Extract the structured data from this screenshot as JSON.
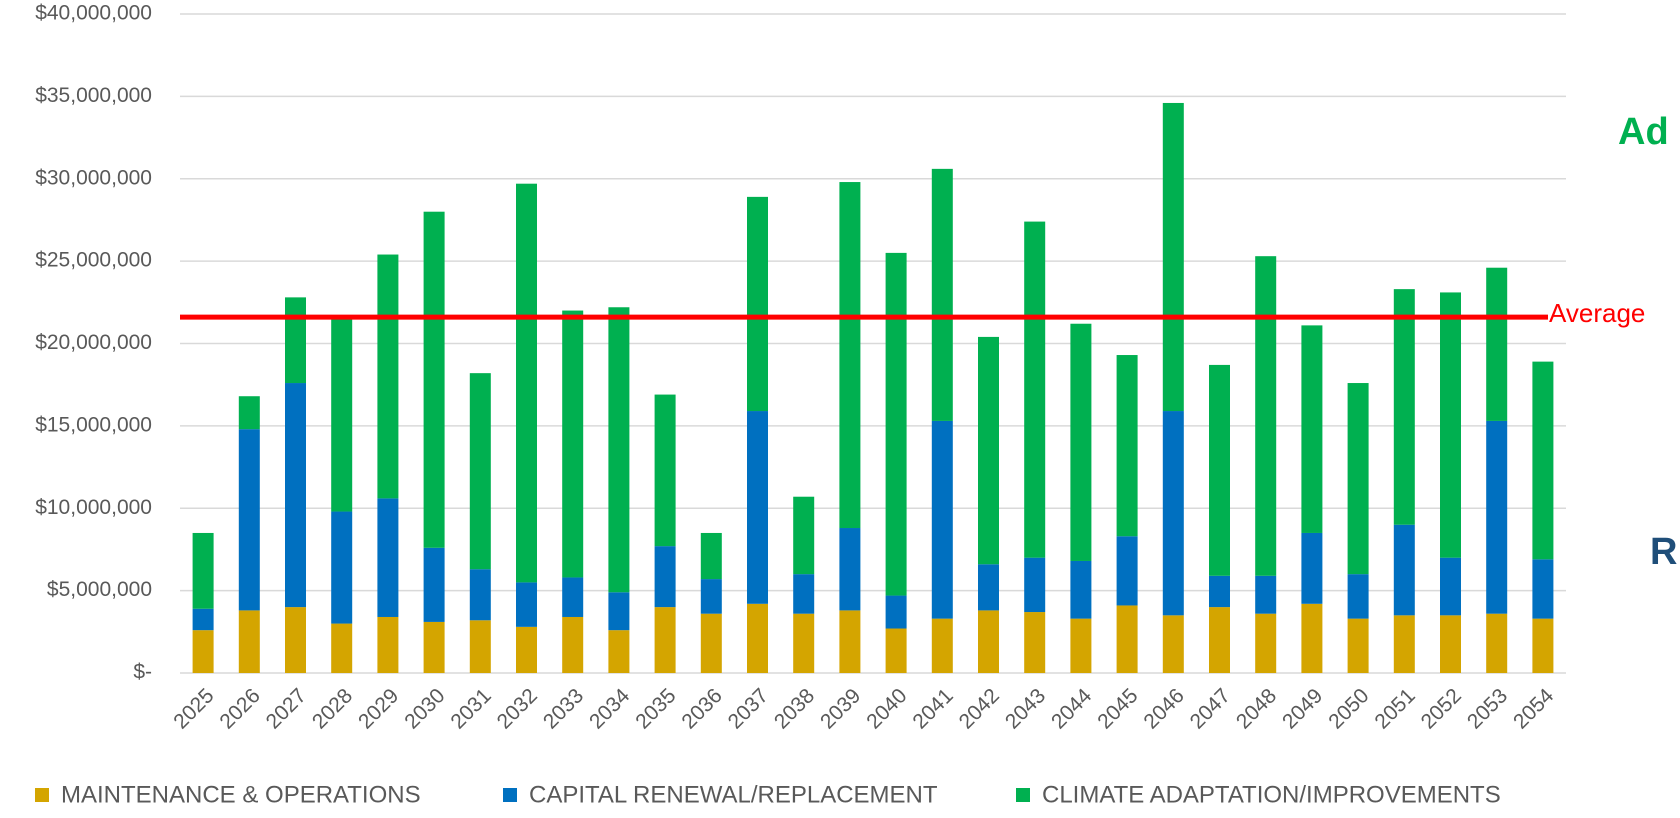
{
  "chart_data": {
    "type": "stacked_bar",
    "categories": [
      "2025",
      "2026",
      "2027",
      "2028",
      "2029",
      "2030",
      "2031",
      "2032",
      "2033",
      "2034",
      "2035",
      "2036",
      "2037",
      "2038",
      "2039",
      "2040",
      "2041",
      "2042",
      "2043",
      "2044",
      "2045",
      "2046",
      "2047",
      "2048",
      "2049",
      "2050",
      "2051",
      "2052",
      "2053",
      "2054"
    ],
    "series": [
      {
        "name": "MAINTENANCE & OPERATIONS",
        "color": "#d4a500",
        "values": [
          2600000,
          3800000,
          4000000,
          3000000,
          3400000,
          3100000,
          3200000,
          2800000,
          3400000,
          2600000,
          4000000,
          3600000,
          4200000,
          3600000,
          3800000,
          2700000,
          3300000,
          3800000,
          3700000,
          3300000,
          4100000,
          3500000,
          4000000,
          3600000,
          4200000,
          3300000,
          3500000,
          3500000,
          3600000,
          3300000
        ]
      },
      {
        "name": "CAPITAL RENEWAL/REPLACEMENT",
        "color": "#0070c0",
        "values": [
          1300000,
          11000000,
          13600000,
          6800000,
          7200000,
          4500000,
          3100000,
          2700000,
          2400000,
          2300000,
          3700000,
          2100000,
          11700000,
          2400000,
          5000000,
          2000000,
          12000000,
          2800000,
          3300000,
          3500000,
          4200000,
          12400000,
          1900000,
          2300000,
          4300000,
          2700000,
          5500000,
          3500000,
          11700000,
          3600000
        ]
      },
      {
        "name": "CLIMATE ADAPTATION/IMPROVEMENTS",
        "color": "#00b050",
        "values": [
          4600000,
          2000000,
          5200000,
          11900000,
          14800000,
          20400000,
          11900000,
          24200000,
          16200000,
          17300000,
          9200000,
          2800000,
          13000000,
          4700000,
          21000000,
          20800000,
          15300000,
          13800000,
          20400000,
          14400000,
          11000000,
          18700000,
          12800000,
          19400000,
          12600000,
          11600000,
          14300000,
          16100000,
          9300000,
          12000000
        ]
      }
    ],
    "ylim": [
      0,
      40000000
    ],
    "yticks": [
      {
        "value": 0,
        "label": "$-"
      },
      {
        "value": 5000000,
        "label": "$5,000,000"
      },
      {
        "value": 10000000,
        "label": "$10,000,000"
      },
      {
        "value": 15000000,
        "label": "$15,000,000"
      },
      {
        "value": 20000000,
        "label": "$20,000,000"
      },
      {
        "value": 25000000,
        "label": "$25,000,000"
      },
      {
        "value": 30000000,
        "label": "$30,000,000"
      },
      {
        "value": 35000000,
        "label": "$35,000,000"
      },
      {
        "value": 40000000,
        "label": "$40,000,000"
      }
    ],
    "grid": true,
    "average": {
      "label": "Average",
      "value": 21600000,
      "color": "#ff0000"
    },
    "annotations": [
      {
        "text": "Ad",
        "color": "#00b050"
      },
      {
        "text": "R",
        "color": "#1f4e79"
      }
    ],
    "legend": "bottom"
  }
}
